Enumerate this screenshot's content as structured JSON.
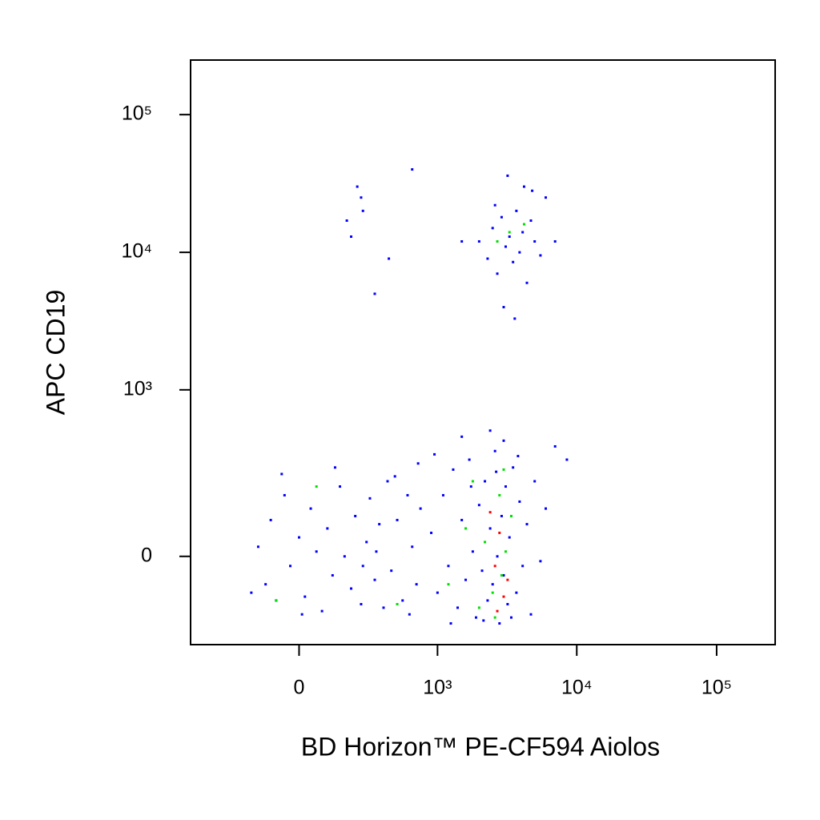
{
  "chart_data": {
    "type": "scatter",
    "x_label": "BD Horizon™ PE-CF594 Aiolos",
    "y_label": "APC CD19",
    "scale": "biexponential",
    "xlim": [
      -600,
      262000
    ],
    "ylim": [
      -257,
      249000
    ],
    "xticks": [
      0,
      {
        "value": 1000,
        "label": "10³"
      },
      {
        "value": 10000,
        "label": "10⁴"
      },
      {
        "value": 100000,
        "label": "10⁵"
      }
    ],
    "yticks": [
      0,
      {
        "value": 1000,
        "label": "10³"
      },
      {
        "value": 10000,
        "label": "10⁴"
      },
      {
        "value": 100000,
        "label": "10⁵"
      }
    ],
    "series": [
      {
        "color": "#0000ff",
        "x": [
          -150,
          -120,
          -100,
          -80,
          -50,
          -30,
          0,
          20,
          40,
          60,
          80,
          100,
          120,
          150,
          170,
          200,
          220,
          250,
          280,
          300,
          330,
          360,
          390,
          420,
          -180,
          -60,
          10,
          130,
          260,
          340,
          450,
          500,
          550,
          600,
          650,
          700,
          750,
          480,
          620,
          720,
          900,
          1000,
          1100,
          1200,
          1300,
          1400,
          1500,
          1600,
          1700,
          1800,
          1900,
          2000,
          2100,
          2200,
          2300,
          2400,
          2500,
          2600,
          2700,
          2800,
          2900,
          3000,
          3100,
          3200,
          3300,
          3500,
          3700,
          3900,
          4100,
          4400,
          4700,
          5000,
          5500,
          6000,
          1500,
          2400,
          3000,
          7000,
          8500,
          950,
          1250,
          1750,
          2150,
          2650,
          3400,
          3800,
          2000,
          2300,
          2500,
          2700,
          2900,
          3100,
          3300,
          3500,
          3700,
          3900,
          4100,
          4400,
          4700,
          5000,
          5500,
          6000,
          3000,
          3600,
          2600,
          4200,
          1500,
          7000,
          3200,
          4800,
          180,
          230,
          260,
          200,
          330,
          430,
          650,
          250
        ],
        "y": [
          20,
          -60,
          80,
          -100,
          150,
          -20,
          40,
          -90,
          110,
          10,
          -130,
          60,
          -40,
          180,
          0,
          -70,
          90,
          -110,
          30,
          140,
          -50,
          70,
          -120,
          200,
          -80,
          230,
          -140,
          260,
          -20,
          10,
          -30,
          80,
          -100,
          150,
          20,
          -60,
          110,
          220,
          -140,
          280,
          50,
          -80,
          150,
          -20,
          250,
          -120,
          80,
          -50,
          300,
          10,
          -150,
          120,
          -30,
          200,
          -100,
          60,
          -60,
          350,
          0,
          -170,
          90,
          -40,
          180,
          -110,
          40,
          260,
          -80,
          130,
          -20,
          70,
          -140,
          200,
          -10,
          110,
          450,
          500,
          420,
          380,
          300,
          330,
          -170,
          180,
          -160,
          240,
          -150,
          320,
          12000,
          9000,
          15000,
          7000,
          18000,
          11000,
          13000,
          8500,
          20000,
          10000,
          14000,
          6000,
          17000,
          12000,
          9500,
          25000,
          4000,
          3300,
          22000,
          30000,
          12000,
          12000,
          36000,
          28000,
          17000,
          30000,
          20000,
          13000,
          5000,
          9000,
          40000,
          25000
        ]
      },
      {
        "color": "#00e000",
        "x": [
          2200,
          2500,
          2800,
          3100,
          2000,
          3400,
          1600,
          2600,
          3000,
          1200,
          -80,
          60,
          3300,
          2700,
          4200,
          500,
          1800,
          2900
        ],
        "y": [
          30,
          -80,
          150,
          10,
          -120,
          90,
          60,
          -150,
          250,
          -60,
          -100,
          180,
          14000,
          12000,
          16000,
          -110,
          200,
          -40
        ]
      },
      {
        "color": "#ff0000",
        "x": [
          2600,
          2800,
          3000,
          2400,
          3200,
          2700
        ],
        "y": [
          -20,
          50,
          -90,
          100,
          -50,
          -130
        ]
      }
    ]
  }
}
